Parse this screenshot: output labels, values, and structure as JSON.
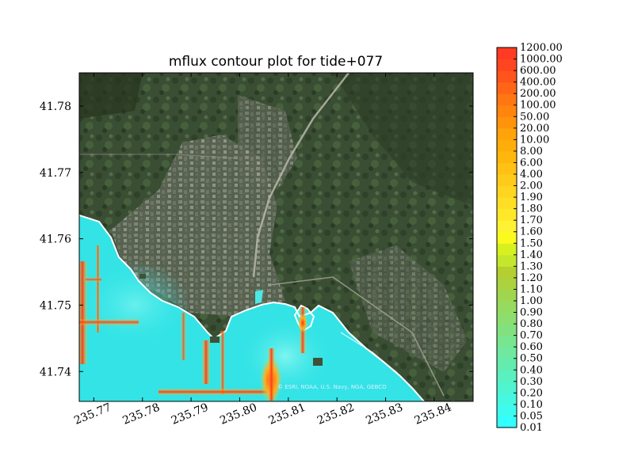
{
  "chart_data": {
    "type": "heatmap",
    "title": "mflux contour plot for tide+077",
    "xlabel": "",
    "ylabel": "",
    "xlim": [
      235.767,
      235.848
    ],
    "ylim": [
      41.7355,
      41.785
    ],
    "x_ticks": [
      235.77,
      235.78,
      235.79,
      235.8,
      235.81,
      235.82,
      235.83,
      235.84
    ],
    "x_tick_labels": [
      "235.77",
      "235.78",
      "235.79",
      "235.80",
      "235.81",
      "235.82",
      "235.83",
      "235.84"
    ],
    "y_ticks": [
      41.74,
      41.75,
      41.76,
      41.77,
      41.78
    ],
    "y_tick_labels": [
      "41.74",
      "41.75",
      "41.76",
      "41.77",
      "41.78"
    ],
    "background": "satellite imagery basemap",
    "attribution": "© ESRI, NOAA, U.S. Navy, NGA, GEBCO",
    "colorbar": {
      "levels": [
        "0.01",
        "0.05",
        "0.10",
        "0.20",
        "0.30",
        "0.40",
        "0.50",
        "0.60",
        "0.70",
        "0.80",
        "0.90",
        "1.00",
        "1.10",
        "1.20",
        "1.30",
        "1.40",
        "1.50",
        "1.60",
        "1.70",
        "1.80",
        "1.90",
        "2.00",
        "4.00",
        "6.00",
        "8.00",
        "10.00",
        "20.00",
        "50.00",
        "100.00",
        "200.00",
        "400.00",
        "600.00",
        "1000.00",
        "1200.00"
      ],
      "colors": [
        "#33ffff",
        "#3dfbef",
        "#46f8df",
        "#50f4cf",
        "#5af0bf",
        "#64ecaf",
        "#6ee99f",
        "#78e58f",
        "#82e17f",
        "#8cde6f",
        "#96da5f",
        "#a0d64f",
        "#aad33f",
        "#b4cf2f",
        "#c4e62c",
        "#d7f020",
        "#fafa1e",
        "#fff232",
        "#ffe82a",
        "#ffdf26",
        "#ffd520",
        "#ffcb1a",
        "#ffc114",
        "#ffb70e",
        "#ffad0a",
        "#ffa30a",
        "#ff940c",
        "#ff850f",
        "#ff7612",
        "#ff6516",
        "#ff541b",
        "#ff4520",
        "#ff3a25",
        "#ff3a25"
      ]
    },
    "colors": {
      "water_low": "#33e6e6",
      "water_mid": "#66f0ff",
      "hot_high": "#ff3a1a",
      "hot_mid": "#ffa500",
      "shoreline": "#ffffff"
    }
  }
}
